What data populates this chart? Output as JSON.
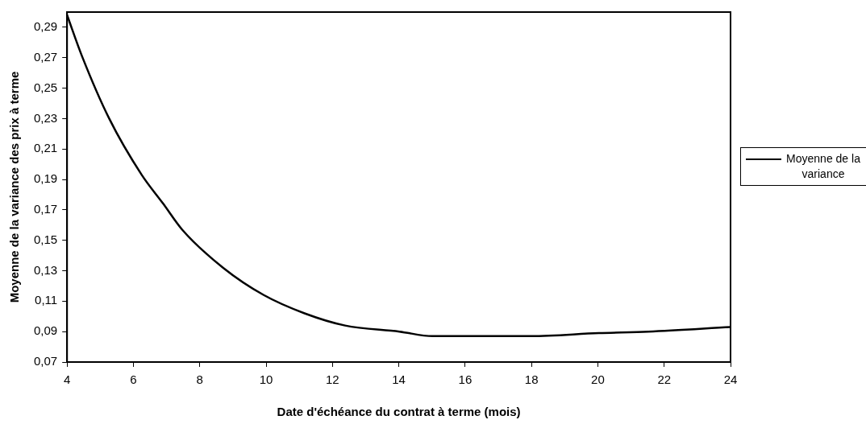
{
  "chart_data": {
    "type": "line",
    "xlabel": "Date d'échéance du contrat à terme (mois)",
    "ylabel": "Moyenne de la variance des prix à terme",
    "x": [
      4,
      4.45,
      5.27,
      6.25,
      6.9,
      7.47,
      8.7,
      9.93,
      11.16,
      12.38,
      14.02,
      15.02,
      16.6,
      17.99,
      20.03,
      21.52,
      24
    ],
    "series": [
      {
        "name": "Moyenne de la variance",
        "color": "#000000",
        "values": [
          0.298,
          0.271,
          0.23,
          0.193,
          0.174,
          0.157,
          0.132,
          0.114,
          0.102,
          0.094,
          0.09,
          0.087,
          0.087,
          0.087,
          0.089,
          0.09,
          0.093
        ]
      }
    ],
    "xlim": [
      4,
      24
    ],
    "xticks": [
      4,
      6,
      8,
      10,
      12,
      14,
      16,
      18,
      20,
      22,
      24
    ],
    "ylim": [
      0.07,
      0.3
    ],
    "yticks": [
      {
        "value": 0.07,
        "label": "0,07"
      },
      {
        "value": 0.09,
        "label": "0,09"
      },
      {
        "value": 0.11,
        "label": "0,11"
      },
      {
        "value": 0.13,
        "label": "0,13"
      },
      {
        "value": 0.15,
        "label": "0,15"
      },
      {
        "value": 0.17,
        "label": "0,17"
      },
      {
        "value": 0.19,
        "label": "0,19"
      },
      {
        "value": 0.21,
        "label": "0,21"
      },
      {
        "value": 0.23,
        "label": "0,23"
      },
      {
        "value": 0.25,
        "label": "0,25"
      },
      {
        "value": 0.27,
        "label": "0,27"
      },
      {
        "value": 0.29,
        "label": "0,29"
      }
    ],
    "grid": false,
    "legend": "right",
    "marker": "none",
    "line_style": "solid"
  }
}
